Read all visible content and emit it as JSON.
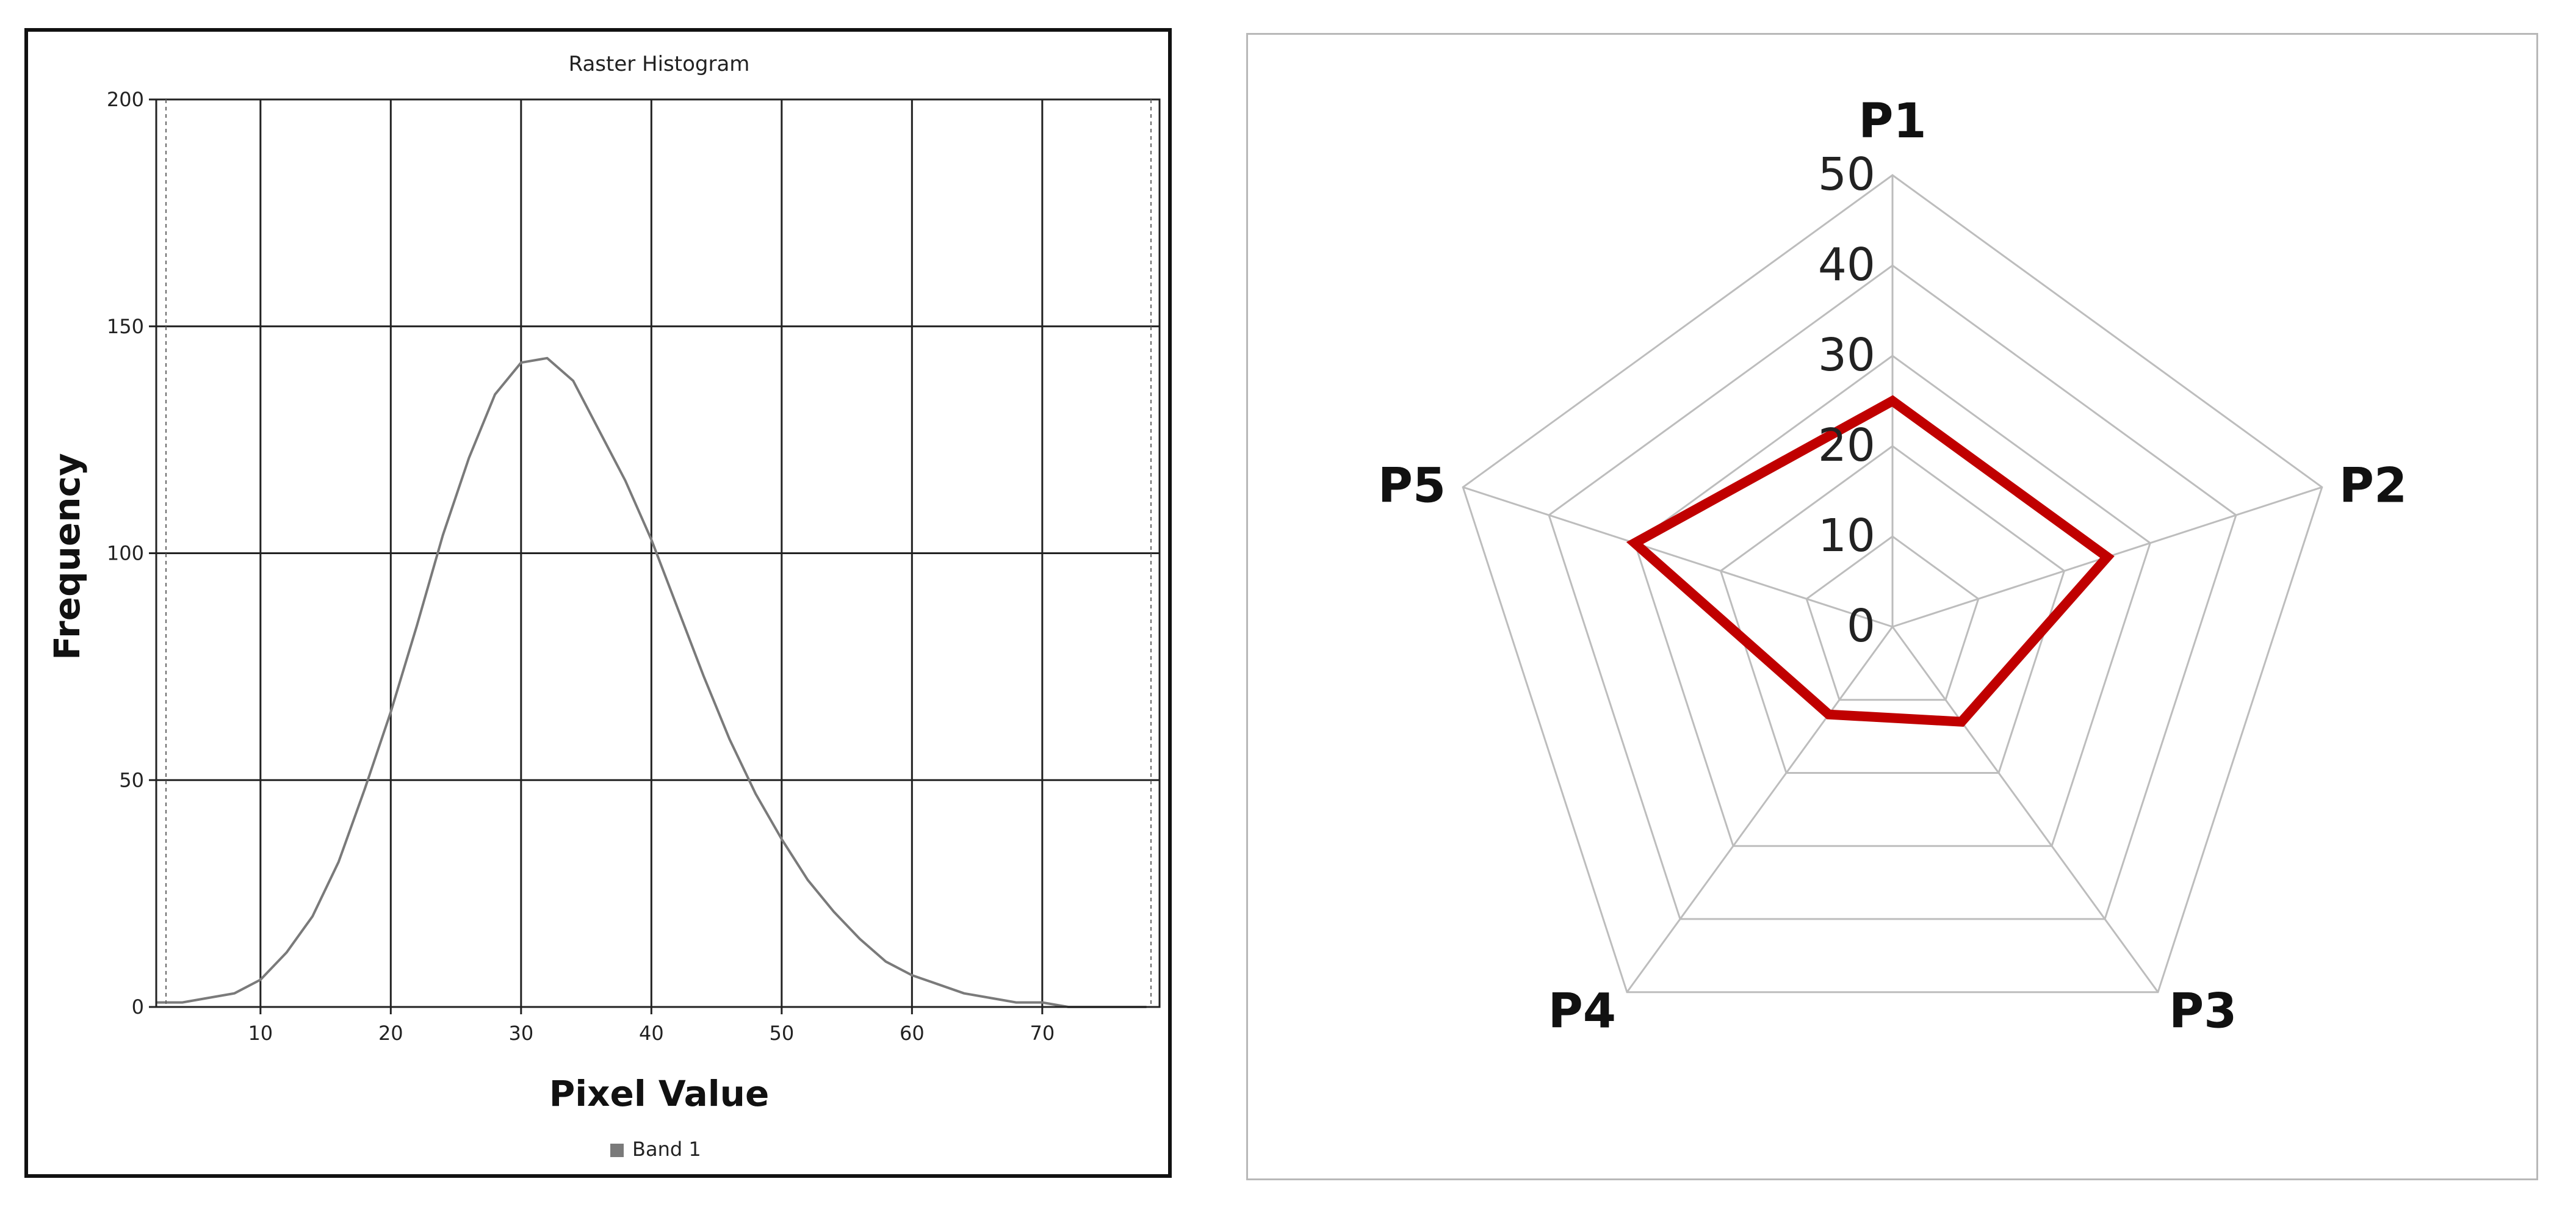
{
  "chart_data": [
    {
      "type": "line",
      "title": "Raster Histogram",
      "xlabel": "Pixel Value",
      "ylabel": "Frequency",
      "xlim": [
        2,
        79
      ],
      "ylim": [
        0,
        200
      ],
      "x_ticks": [
        "10",
        "20",
        "30",
        "40",
        "50",
        "60",
        "70"
      ],
      "y_ticks": [
        "0",
        "50",
        "100",
        "150",
        "200"
      ],
      "grid": true,
      "legend_position": "bottom",
      "series": [
        {
          "name": "Band 1",
          "color": "#7a7a7a",
          "x": [
            2,
            4,
            6,
            8,
            10,
            12,
            14,
            16,
            18,
            20,
            22,
            24,
            26,
            28,
            30,
            32,
            34,
            36,
            38,
            40,
            42,
            44,
            46,
            48,
            50,
            52,
            54,
            56,
            58,
            60,
            62,
            64,
            66,
            68,
            70,
            72,
            74,
            76,
            78
          ],
          "y": [
            1,
            1,
            2,
            3,
            6,
            12,
            20,
            32,
            48,
            65,
            84,
            104,
            121,
            135,
            142,
            143,
            138,
            127,
            116,
            103,
            88,
            73,
            59,
            47,
            37,
            28,
            21,
            15,
            10,
            7,
            5,
            3,
            2,
            1,
            1,
            0,
            0,
            0,
            0
          ]
        }
      ]
    },
    {
      "type": "radar",
      "categories": [
        "P1",
        "P2",
        "P3",
        "P4",
        "P5"
      ],
      "r_ticks": [
        "0",
        "10",
        "20",
        "30",
        "40",
        "50"
      ],
      "rlim": [
        0,
        50
      ],
      "series": [
        {
          "color": "#c00000",
          "values": [
            25,
            25,
            13,
            12,
            30
          ]
        }
      ]
    }
  ]
}
